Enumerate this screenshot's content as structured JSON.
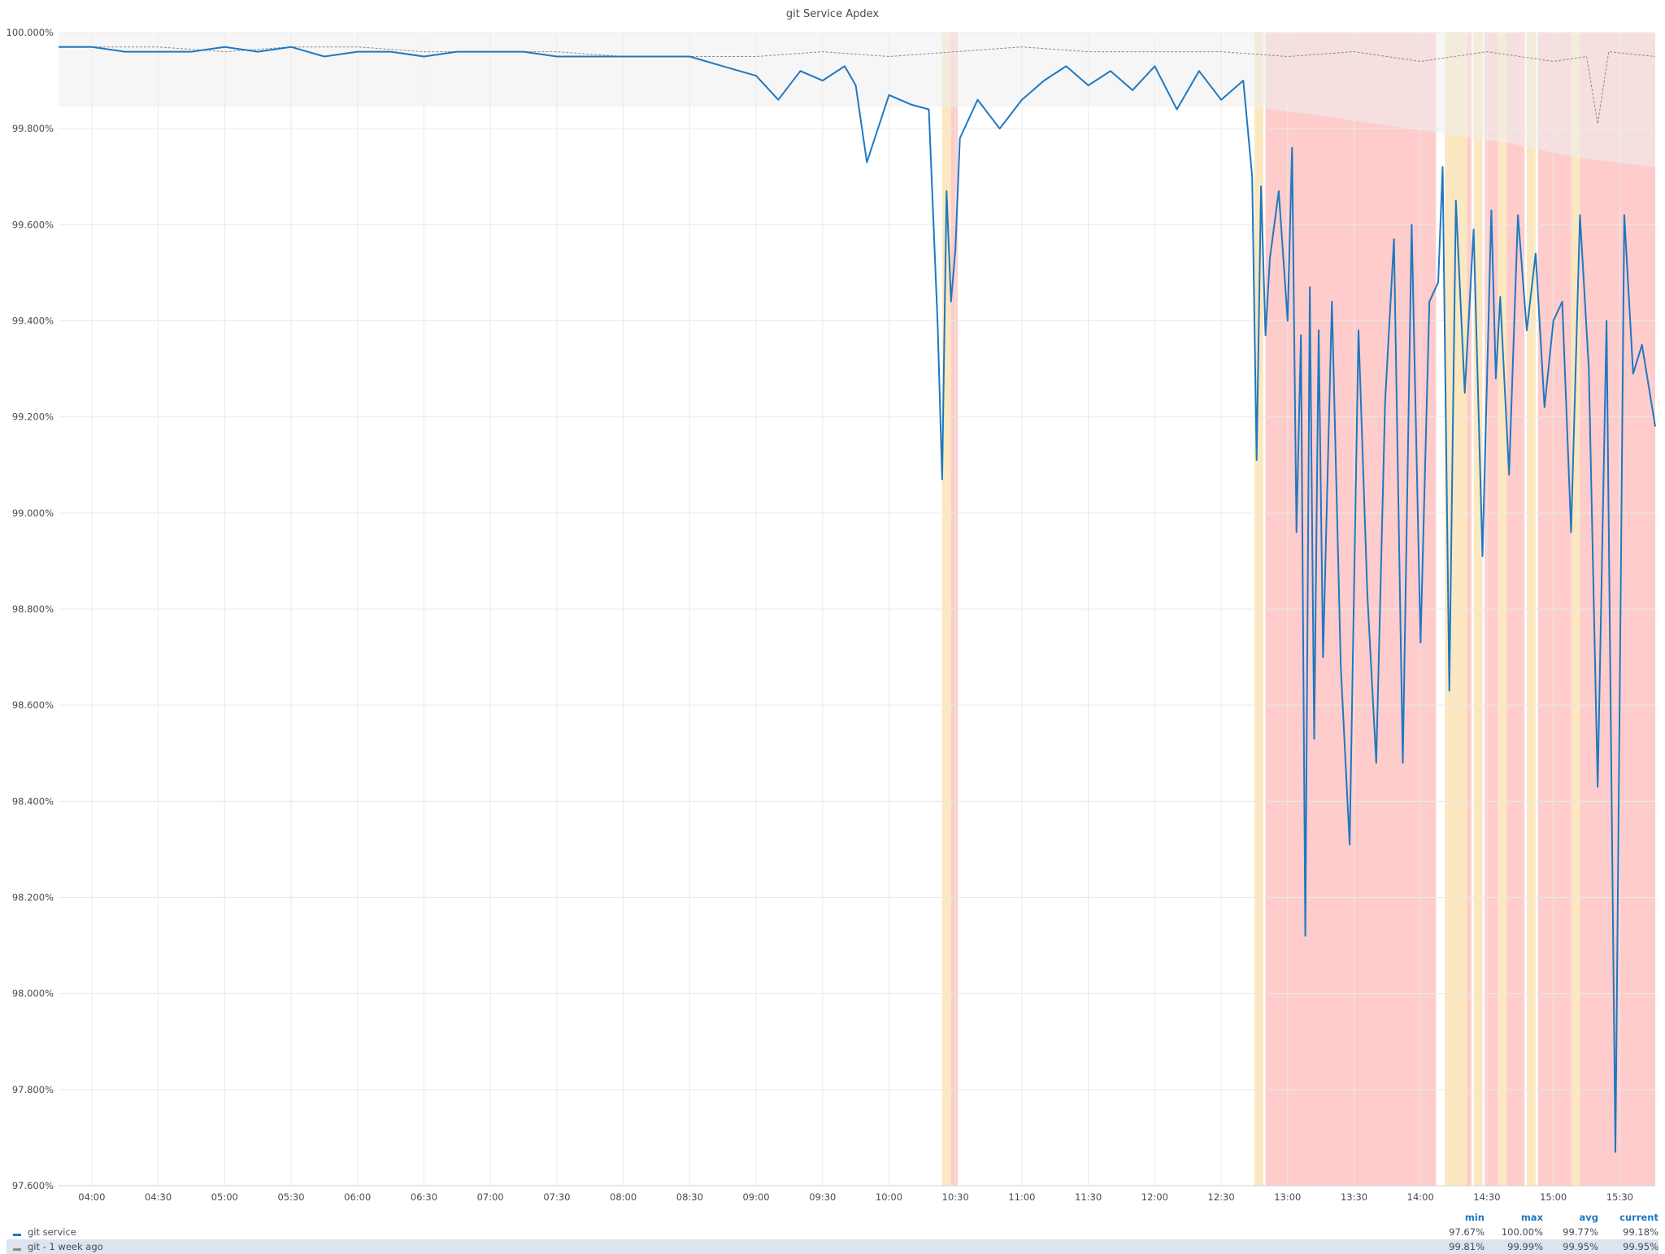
{
  "chart_data": {
    "type": "line",
    "title": "git Service Apdex",
    "xlabel": "",
    "ylabel": "",
    "x_range": [
      "03:45",
      "15:46"
    ],
    "ylim": [
      97.6,
      100.0
    ],
    "y_ticks": [
      "100.000%",
      "99.800%",
      "99.600%",
      "99.400%",
      "99.200%",
      "99.000%",
      "98.800%",
      "98.600%",
      "98.400%",
      "98.200%",
      "98.000%",
      "97.800%",
      "97.600%"
    ],
    "x_ticks": [
      "04:00",
      "04:30",
      "05:00",
      "05:30",
      "06:00",
      "06:30",
      "07:00",
      "07:30",
      "08:00",
      "08:30",
      "09:00",
      "09:30",
      "10:00",
      "10:30",
      "11:00",
      "11:30",
      "12:00",
      "12:30",
      "13:00",
      "13:30",
      "14:00",
      "14:30",
      "15:00",
      "15:30"
    ],
    "grid": true,
    "legend_position": "bottom",
    "series": [
      {
        "name": "git service",
        "color": "#1f78c1",
        "points": [
          [
            "03:45",
            99.97
          ],
          [
            "04:00",
            99.97
          ],
          [
            "04:15",
            99.96
          ],
          [
            "04:30",
            99.96
          ],
          [
            "04:45",
            99.96
          ],
          [
            "05:00",
            99.97
          ],
          [
            "05:15",
            99.96
          ],
          [
            "05:30",
            99.97
          ],
          [
            "05:45",
            99.95
          ],
          [
            "06:00",
            99.96
          ],
          [
            "06:15",
            99.96
          ],
          [
            "06:30",
            99.95
          ],
          [
            "06:45",
            99.96
          ],
          [
            "07:00",
            99.96
          ],
          [
            "07:15",
            99.96
          ],
          [
            "07:30",
            99.95
          ],
          [
            "07:45",
            99.95
          ],
          [
            "08:00",
            99.95
          ],
          [
            "08:15",
            99.95
          ],
          [
            "08:30",
            99.95
          ],
          [
            "08:45",
            99.93
          ],
          [
            "09:00",
            99.91
          ],
          [
            "09:10",
            99.86
          ],
          [
            "09:20",
            99.92
          ],
          [
            "09:30",
            99.9
          ],
          [
            "09:40",
            99.93
          ],
          [
            "09:45",
            99.89
          ],
          [
            "09:50",
            99.73
          ],
          [
            "10:00",
            99.87
          ],
          [
            "10:10",
            99.85
          ],
          [
            "10:18",
            99.84
          ],
          [
            "10:22",
            99.39
          ],
          [
            "10:24",
            99.07
          ],
          [
            "10:26",
            99.67
          ],
          [
            "10:28",
            99.44
          ],
          [
            "10:30",
            99.55
          ],
          [
            "10:32",
            99.78
          ],
          [
            "10:40",
            99.86
          ],
          [
            "10:50",
            99.8
          ],
          [
            "11:00",
            99.86
          ],
          [
            "11:10",
            99.9
          ],
          [
            "11:20",
            99.93
          ],
          [
            "11:30",
            99.89
          ],
          [
            "11:40",
            99.92
          ],
          [
            "11:50",
            99.88
          ],
          [
            "12:00",
            99.93
          ],
          [
            "12:10",
            99.84
          ],
          [
            "12:20",
            99.92
          ],
          [
            "12:30",
            99.86
          ],
          [
            "12:40",
            99.9
          ],
          [
            "12:44",
            99.7
          ],
          [
            "12:46",
            99.11
          ],
          [
            "12:48",
            99.68
          ],
          [
            "12:50",
            99.37
          ],
          [
            "12:52",
            99.53
          ],
          [
            "12:56",
            99.67
          ],
          [
            "13:00",
            99.4
          ],
          [
            "13:02",
            99.76
          ],
          [
            "13:04",
            98.96
          ],
          [
            "13:06",
            99.37
          ],
          [
            "13:08",
            98.12
          ],
          [
            "13:10",
            99.47
          ],
          [
            "13:12",
            98.53
          ],
          [
            "13:14",
            99.38
          ],
          [
            "13:16",
            98.7
          ],
          [
            "13:20",
            99.44
          ],
          [
            "13:24",
            98.68
          ],
          [
            "13:28",
            98.31
          ],
          [
            "13:32",
            99.38
          ],
          [
            "13:36",
            98.83
          ],
          [
            "13:40",
            98.48
          ],
          [
            "13:44",
            99.23
          ],
          [
            "13:48",
            99.57
          ],
          [
            "13:52",
            98.48
          ],
          [
            "13:56",
            99.6
          ],
          [
            "14:00",
            98.73
          ],
          [
            "14:04",
            99.44
          ],
          [
            "14:08",
            99.48
          ],
          [
            "14:10",
            99.72
          ],
          [
            "14:13",
            98.63
          ],
          [
            "14:16",
            99.65
          ],
          [
            "14:20",
            99.25
          ],
          [
            "14:24",
            99.59
          ],
          [
            "14:28",
            98.91
          ],
          [
            "14:32",
            99.63
          ],
          [
            "14:34",
            99.28
          ],
          [
            "14:36",
            99.45
          ],
          [
            "14:40",
            99.08
          ],
          [
            "14:44",
            99.62
          ],
          [
            "14:48",
            99.38
          ],
          [
            "14:52",
            99.54
          ],
          [
            "14:56",
            99.22
          ],
          [
            "15:00",
            99.4
          ],
          [
            "15:04",
            99.44
          ],
          [
            "15:08",
            98.96
          ],
          [
            "15:12",
            99.62
          ],
          [
            "15:16",
            99.3
          ],
          [
            "15:20",
            98.43
          ],
          [
            "15:24",
            99.4
          ],
          [
            "15:28",
            97.67
          ],
          [
            "15:32",
            99.62
          ],
          [
            "15:36",
            99.29
          ],
          [
            "15:40",
            99.35
          ],
          [
            "15:46",
            99.18
          ]
        ],
        "stats": {
          "min": "97.67%",
          "max": "100.00%",
          "avg": "99.77%",
          "current": "99.18%"
        }
      },
      {
        "name": "git - 1 week ago",
        "color": "#8b8b8b",
        "points": [
          [
            "03:45",
            99.97
          ],
          [
            "04:30",
            99.97
          ],
          [
            "05:00",
            99.96
          ],
          [
            "05:30",
            99.97
          ],
          [
            "06:00",
            99.97
          ],
          [
            "06:30",
            99.96
          ],
          [
            "07:00",
            99.96
          ],
          [
            "07:30",
            99.96
          ],
          [
            "08:00",
            99.95
          ],
          [
            "08:30",
            99.95
          ],
          [
            "09:00",
            99.95
          ],
          [
            "09:30",
            99.96
          ],
          [
            "10:00",
            99.95
          ],
          [
            "10:30",
            99.96
          ],
          [
            "11:00",
            99.97
          ],
          [
            "11:30",
            99.96
          ],
          [
            "12:00",
            99.96
          ],
          [
            "12:30",
            99.96
          ],
          [
            "13:00",
            99.95
          ],
          [
            "13:30",
            99.96
          ],
          [
            "14:00",
            99.94
          ],
          [
            "14:30",
            99.96
          ],
          [
            "15:00",
            99.94
          ],
          [
            "15:15",
            99.95
          ],
          [
            "15:20",
            99.81
          ],
          [
            "15:25",
            99.96
          ],
          [
            "15:46",
            99.95
          ]
        ],
        "stats": {
          "min": "99.81%",
          "max": "99.99%",
          "avg": "99.95%",
          "current": "99.95%"
        }
      }
    ],
    "threshold_band": {
      "color": "#eeeeee",
      "upper": 100.0,
      "lower_points": [
        [
          "03:45",
          99.845
        ],
        [
          "12:45",
          99.845
        ],
        [
          "13:10",
          99.83
        ],
        [
          "13:40",
          99.81
        ],
        [
          "14:10",
          99.79
        ],
        [
          "14:40",
          99.77
        ],
        [
          "15:10",
          99.74
        ],
        [
          "15:46",
          99.72
        ]
      ]
    },
    "alert_regions": [
      {
        "start": "10:24",
        "end": "10:28",
        "level": "warning",
        "color": "#fbe8c0"
      },
      {
        "start": "10:28",
        "end": "10:31",
        "level": "critical",
        "color": "#ffcccc"
      },
      {
        "start": "12:45",
        "end": "12:49",
        "level": "warning",
        "color": "#fbe8c0"
      },
      {
        "start": "12:50",
        "end": "14:07",
        "level": "critical",
        "color": "#ffcccc"
      },
      {
        "start": "14:11",
        "end": "14:21",
        "level": "warning",
        "color": "#fbe8c0"
      },
      {
        "start": "14:21",
        "end": "14:23",
        "level": "critical",
        "color": "#ffcccc"
      },
      {
        "start": "14:24",
        "end": "14:28",
        "level": "warning",
        "color": "#fbe8c0"
      },
      {
        "start": "14:29",
        "end": "14:35",
        "level": "critical",
        "color": "#ffcccc"
      },
      {
        "start": "14:35",
        "end": "14:39",
        "level": "warning",
        "color": "#fbe8c0"
      },
      {
        "start": "14:39",
        "end": "14:47",
        "level": "critical",
        "color": "#ffcccc"
      },
      {
        "start": "14:48",
        "end": "14:52",
        "level": "warning",
        "color": "#fbe8c0"
      },
      {
        "start": "14:53",
        "end": "15:08",
        "level": "critical",
        "color": "#ffcccc"
      },
      {
        "start": "15:08",
        "end": "15:12",
        "level": "warning",
        "color": "#fbe8c0"
      },
      {
        "start": "15:12",
        "end": "15:46",
        "level": "critical",
        "color": "#ffcccc"
      }
    ]
  },
  "legend": {
    "headers": {
      "min": "min",
      "max": "max",
      "avg": "avg",
      "current": "current"
    }
  }
}
